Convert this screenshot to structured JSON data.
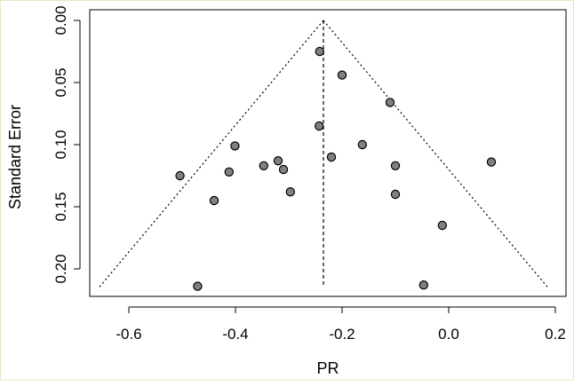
{
  "chart_data": {
    "type": "scatter",
    "subtype": "funnel-plot",
    "title": "",
    "xlabel": "PR",
    "ylabel": "Standard Error",
    "xlim": [
      -0.66,
      0.2
    ],
    "ylim": [
      0.2165,
      -0.008
    ],
    "y_axis_inverted": true,
    "grid": false,
    "x_ticks": [
      -0.6,
      -0.4,
      -0.2,
      0.0,
      0.2
    ],
    "x_tick_labels": [
      "-0.6",
      "-0.4",
      "-0.2",
      "0.0",
      "0.2"
    ],
    "y_ticks": [
      0.0,
      0.05,
      0.1,
      0.15,
      0.2
    ],
    "y_tick_labels": [
      "0.00",
      "0.05",
      "0.10",
      "0.15",
      "0.20"
    ],
    "pooled_estimate": -0.235,
    "funnel": {
      "apex": [
        -0.235,
        0.0
      ],
      "bottom_left": [
        -0.655,
        0.2145
      ],
      "bottom_right": [
        0.185,
        0.2145
      ]
    },
    "points": [
      {
        "x": -0.242,
        "y": 0.025
      },
      {
        "x": -0.2,
        "y": 0.044
      },
      {
        "x": -0.11,
        "y": 0.066
      },
      {
        "x": -0.243,
        "y": 0.085
      },
      {
        "x": -0.162,
        "y": 0.1
      },
      {
        "x": -0.401,
        "y": 0.101
      },
      {
        "x": -0.22,
        "y": 0.11
      },
      {
        "x": -0.32,
        "y": 0.113
      },
      {
        "x": -0.347,
        "y": 0.117
      },
      {
        "x": -0.31,
        "y": 0.12
      },
      {
        "x": -0.412,
        "y": 0.122
      },
      {
        "x": -0.504,
        "y": 0.125
      },
      {
        "x": -0.1,
        "y": 0.117
      },
      {
        "x": 0.08,
        "y": 0.114
      },
      {
        "x": -0.297,
        "y": 0.138
      },
      {
        "x": -0.1,
        "y": 0.14
      },
      {
        "x": -0.44,
        "y": 0.145
      },
      {
        "x": -0.012,
        "y": 0.165
      },
      {
        "x": -0.471,
        "y": 0.214
      },
      {
        "x": -0.047,
        "y": 0.213
      }
    ],
    "colors": {
      "point_fill": "#808080",
      "point_stroke": "#000000",
      "line": "#000000"
    }
  }
}
